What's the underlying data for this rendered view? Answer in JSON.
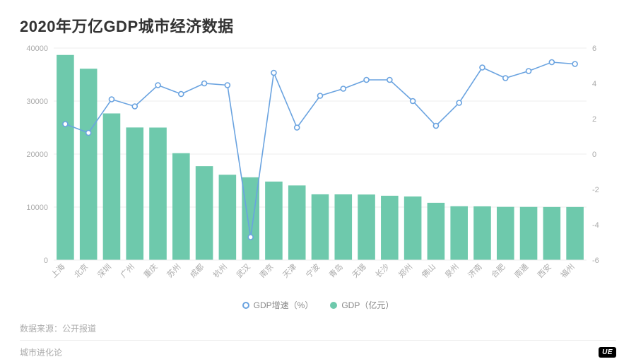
{
  "title": "2020年万亿GDP城市经济数据",
  "chart": {
    "type": "bar+line",
    "categories": [
      "上海",
      "北京",
      "深圳",
      "广州",
      "重庆",
      "苏州",
      "成都",
      "杭州",
      "武汉",
      "南京",
      "天津",
      "宁波",
      "青岛",
      "无锡",
      "长沙",
      "郑州",
      "佛山",
      "泉州",
      "济南",
      "合肥",
      "南通",
      "西安",
      "福州"
    ],
    "bar_series": {
      "name": "GDP（亿元）",
      "values": [
        38700,
        36103,
        27670,
        25019,
        25003,
        20171,
        17717,
        16106,
        15616,
        14818,
        14084,
        12409,
        12401,
        12370,
        12143,
        12003,
        10816,
        10159,
        10141,
        10046,
        10036,
        10020,
        10020
      ],
      "color": "#6ec9ac"
    },
    "line_series": {
      "name": "GDP增速（%）",
      "values": [
        1.7,
        1.2,
        3.1,
        2.7,
        3.9,
        3.4,
        4.0,
        3.9,
        -4.7,
        4.6,
        1.5,
        3.3,
        3.7,
        4.2,
        4.2,
        3.0,
        1.6,
        2.9,
        4.9,
        4.3,
        4.7,
        5.2,
        5.1
      ],
      "color": "#6aa3e0",
      "marker_size": 3.5
    },
    "y_left": {
      "min": 0,
      "max": 40000,
      "step": 10000
    },
    "y_right": {
      "min": -6,
      "max": 6,
      "step": 2
    },
    "plot_bg": "#ffffff",
    "grid_color": "#ececec",
    "axis_text_color": "#aaaaaa",
    "axis_text_size": 11,
    "xlabel_rotate": -45,
    "bar_gap_ratio": 0.25
  },
  "legend": {
    "line_label": "GDP增速（%）",
    "bar_label": "GDP（亿元）"
  },
  "footer": {
    "source": "数据来源：公开报道",
    "brand": "城市进化论",
    "watermark": "UE"
  }
}
